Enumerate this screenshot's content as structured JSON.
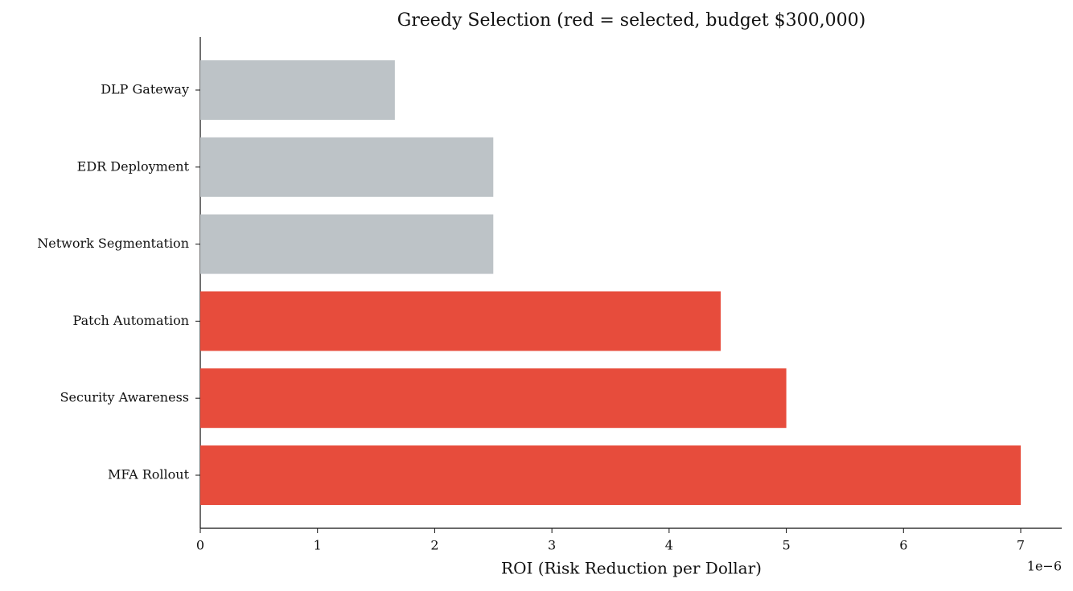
{
  "chart_data": {
    "type": "barh",
    "title": "Greedy Selection (red = selected, budget $300,000)",
    "xlabel": "ROI (Risk Reduction per Dollar)",
    "x_offset_label": "1e−6",
    "categories": [
      "DLP Gateway",
      "EDR Deployment",
      "Network Segmentation",
      "Patch Automation",
      "Security Awareness",
      "MFA Rollout"
    ],
    "values": [
      1.66,
      2.5,
      2.5,
      4.44,
      5.0,
      7.0
    ],
    "colors": [
      "#bdc3c7",
      "#bdc3c7",
      "#bdc3c7",
      "#e74c3c",
      "#e74c3c",
      "#e74c3c"
    ],
    "xlim": [
      0,
      7.35
    ],
    "xticks": [
      0,
      1,
      2,
      3,
      4,
      5,
      6,
      7
    ],
    "grid": false
  }
}
